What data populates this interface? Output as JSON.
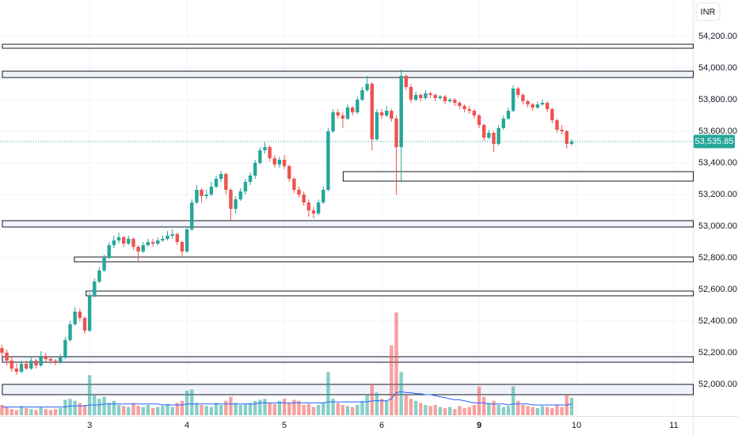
{
  "chart_data": {
    "type": "candlestick",
    "currency": "INR",
    "candles": [
      [
        52230,
        52250,
        52170,
        52200
      ],
      [
        52200,
        52220,
        52120,
        52150
      ],
      [
        52150,
        52170,
        52080,
        52100
      ],
      [
        52100,
        52130,
        52060,
        52080
      ],
      [
        52080,
        52150,
        52070,
        52130
      ],
      [
        52130,
        52150,
        52090,
        52100
      ],
      [
        52100,
        52170,
        52090,
        52150
      ],
      [
        52150,
        52160,
        52100,
        52120
      ],
      [
        52120,
        52210,
        52110,
        52180
      ],
      [
        52180,
        52200,
        52140,
        52160
      ],
      [
        52160,
        52180,
        52130,
        52150
      ],
      [
        52150,
        52160,
        52120,
        52140
      ],
      [
        52140,
        52190,
        52130,
        52170
      ],
      [
        52170,
        52300,
        52160,
        52280
      ],
      [
        52280,
        52400,
        52270,
        52380
      ],
      [
        52380,
        52490,
        52370,
        52460
      ],
      [
        52460,
        52480,
        52400,
        52420
      ],
      [
        52420,
        52430,
        52320,
        52340
      ],
      [
        52340,
        52580,
        52330,
        52560
      ],
      [
        52560,
        52670,
        52550,
        52650
      ],
      [
        52650,
        52740,
        52640,
        52720
      ],
      [
        52720,
        52820,
        52710,
        52800
      ],
      [
        52800,
        52900,
        52790,
        52880
      ],
      [
        52880,
        52940,
        52860,
        52910
      ],
      [
        52910,
        52960,
        52890,
        52930
      ],
      [
        52930,
        52940,
        52870,
        52890
      ],
      [
        52890,
        52940,
        52880,
        52920
      ],
      [
        52920,
        52930,
        52850,
        52870
      ],
      [
        52870,
        52880,
        52780,
        52840
      ],
      [
        52840,
        52900,
        52830,
        52880
      ],
      [
        52880,
        52920,
        52870,
        52900
      ],
      [
        52900,
        52920,
        52870,
        52890
      ],
      [
        52890,
        52930,
        52880,
        52910
      ],
      [
        52910,
        52940,
        52900,
        52920
      ],
      [
        52920,
        52970,
        52910,
        52940
      ],
      [
        52940,
        52980,
        52920,
        52950
      ],
      [
        52950,
        52960,
        52880,
        52900
      ],
      [
        52900,
        52910,
        52810,
        52840
      ],
      [
        52840,
        53000,
        52830,
        52980
      ],
      [
        52980,
        53170,
        52970,
        53150
      ],
      [
        53150,
        53260,
        53140,
        53230
      ],
      [
        53230,
        53240,
        53150,
        53190
      ],
      [
        53190,
        53230,
        53170,
        53200
      ],
      [
        53200,
        53280,
        53190,
        53250
      ],
      [
        53250,
        53320,
        53240,
        53300
      ],
      [
        53300,
        53350,
        53280,
        53330
      ],
      [
        53330,
        53340,
        53200,
        53230
      ],
      [
        53230,
        53240,
        53030,
        53110
      ],
      [
        53110,
        53190,
        53080,
        53170
      ],
      [
        53170,
        53240,
        53160,
        53220
      ],
      [
        53220,
        53300,
        53200,
        53280
      ],
      [
        53280,
        53340,
        53260,
        53320
      ],
      [
        53320,
        53420,
        53300,
        53400
      ],
      [
        53400,
        53500,
        53390,
        53480
      ],
      [
        53480,
        53530,
        53460,
        53500
      ],
      [
        53500,
        53510,
        53410,
        53430
      ],
      [
        53430,
        53450,
        53370,
        53390
      ],
      [
        53390,
        53440,
        53370,
        53420
      ],
      [
        53420,
        53450,
        53360,
        53380
      ],
      [
        53380,
        53390,
        53280,
        53300
      ],
      [
        53300,
        53310,
        53210,
        53230
      ],
      [
        53230,
        53250,
        53180,
        53200
      ],
      [
        53200,
        53220,
        53130,
        53150
      ],
      [
        53150,
        53170,
        53060,
        53100
      ],
      [
        53100,
        53120,
        53050,
        53080
      ],
      [
        53080,
        53170,
        53070,
        53150
      ],
      [
        53150,
        53250,
        53140,
        53230
      ],
      [
        53230,
        53620,
        53220,
        53600
      ],
      [
        53600,
        53740,
        53590,
        53720
      ],
      [
        53720,
        53740,
        53680,
        53700
      ],
      [
        53700,
        53720,
        53620,
        53680
      ],
      [
        53680,
        53770,
        53670,
        53750
      ],
      [
        53750,
        53760,
        53700,
        53720
      ],
      [
        53720,
        53820,
        53710,
        53800
      ],
      [
        53800,
        53880,
        53790,
        53860
      ],
      [
        53860,
        53950,
        53850,
        53900
      ],
      [
        53900,
        53910,
        53480,
        53550
      ],
      [
        53550,
        53740,
        53540,
        53720
      ],
      [
        53720,
        53740,
        53680,
        53700
      ],
      [
        53700,
        53760,
        53690,
        53730
      ],
      [
        53730,
        53740,
        53660,
        53680
      ],
      [
        53680,
        53700,
        53200,
        53500
      ],
      [
        53500,
        53990,
        53280,
        53950
      ],
      [
        53950,
        53960,
        53860,
        53880
      ],
      [
        53880,
        53900,
        53780,
        53800
      ],
      [
        53800,
        53850,
        53790,
        53830
      ],
      [
        53830,
        53840,
        53790,
        53810
      ],
      [
        53810,
        53860,
        53800,
        53840
      ],
      [
        53840,
        53850,
        53810,
        53830
      ],
      [
        53830,
        53840,
        53790,
        53810
      ],
      [
        53810,
        53830,
        53800,
        53820
      ],
      [
        53820,
        53830,
        53770,
        53790
      ],
      [
        53790,
        53810,
        53780,
        53800
      ],
      [
        53800,
        53810,
        53760,
        53780
      ],
      [
        53780,
        53790,
        53740,
        53760
      ],
      [
        53760,
        53770,
        53720,
        53740
      ],
      [
        53740,
        53760,
        53710,
        53730
      ],
      [
        53730,
        53740,
        53680,
        53700
      ],
      [
        53700,
        53710,
        53620,
        53640
      ],
      [
        53640,
        53650,
        53540,
        53560
      ],
      [
        53560,
        53610,
        53550,
        53590
      ],
      [
        53590,
        53600,
        53470,
        53520
      ],
      [
        53520,
        53640,
        53510,
        53620
      ],
      [
        53620,
        53700,
        53610,
        53680
      ],
      [
        53680,
        53750,
        53670,
        53730
      ],
      [
        53730,
        53890,
        53720,
        53870
      ],
      [
        53870,
        53880,
        53810,
        53830
      ],
      [
        53830,
        53840,
        53770,
        53790
      ],
      [
        53790,
        53800,
        53750,
        53770
      ],
      [
        53770,
        53780,
        53730,
        53750
      ],
      [
        53750,
        53790,
        53740,
        53770
      ],
      [
        53770,
        53800,
        53760,
        53780
      ],
      [
        53780,
        53790,
        53720,
        53740
      ],
      [
        53740,
        53750,
        53650,
        53670
      ],
      [
        53670,
        53680,
        53590,
        53610
      ],
      [
        53610,
        53640,
        53580,
        53600
      ],
      [
        53600,
        53610,
        53490,
        53520
      ],
      [
        53520,
        53550,
        53510,
        53535.85
      ]
    ],
    "volume": [
      10,
      8,
      6,
      5,
      9,
      7,
      6,
      5,
      8,
      6,
      5,
      6,
      7,
      15,
      16,
      14,
      12,
      10,
      39,
      20,
      16,
      18,
      12,
      14,
      10,
      9,
      8,
      12,
      9,
      8,
      10,
      7,
      8,
      9,
      11,
      8,
      12,
      14,
      24,
      25,
      12,
      10,
      9,
      8,
      12,
      10,
      14,
      18,
      12,
      10,
      11,
      12,
      14,
      15,
      16,
      12,
      11,
      14,
      16,
      12,
      15,
      14,
      10,
      11,
      8,
      10,
      12,
      42,
      16,
      12,
      10,
      9,
      8,
      10,
      14,
      20,
      30,
      22,
      16,
      14,
      68,
      100,
      42,
      20,
      16,
      14,
      12,
      10,
      9,
      10,
      8,
      7,
      8,
      6,
      9,
      7,
      8,
      10,
      28,
      18,
      12,
      14,
      10,
      8,
      9,
      28,
      14,
      10,
      9,
      8,
      7,
      9,
      8,
      7,
      10,
      8,
      20,
      17
    ],
    "volume_ma": [
      8,
      8,
      8,
      8,
      8,
      8,
      8,
      8,
      8,
      8,
      8,
      8,
      8,
      8,
      9,
      9,
      9,
      9,
      10,
      10,
      10,
      11,
      11,
      11,
      11,
      11,
      11,
      11,
      11,
      11,
      11,
      11,
      11,
      10,
      10,
      10,
      10,
      10,
      11,
      11,
      11,
      11,
      11,
      11,
      11,
      11,
      11,
      11,
      11,
      11,
      11,
      11,
      11,
      12,
      12,
      12,
      12,
      12,
      12,
      12,
      12,
      12,
      12,
      12,
      12,
      12,
      12,
      13,
      13,
      13,
      13,
      13,
      13,
      13,
      13,
      13,
      14,
      14,
      14,
      14,
      16,
      22,
      23,
      22,
      22,
      21,
      21,
      20,
      20,
      19,
      18,
      17,
      16,
      15,
      15,
      14,
      13,
      12,
      12,
      12,
      11,
      11,
      11,
      11,
      10,
      11,
      11,
      11,
      11,
      10,
      10,
      10,
      10,
      10,
      10,
      10,
      10,
      11
    ],
    "up_color": "#26a69a",
    "down_color": "#ef5350",
    "volume_up_color": "rgba(38,166,154,0.55)",
    "volume_down_color": "rgba(239,83,80,0.55)",
    "volume_ma_color": "#2962ff",
    "volume_lim": [
      0,
      100
    ],
    "last_price": {
      "value": 53535.85,
      "label": "53,535.85"
    },
    "zones": [
      {
        "top": 54150,
        "bottom": 54125,
        "start": 0,
        "fill": "#ffffff"
      },
      {
        "top": 53980,
        "bottom": 53940,
        "start": 0,
        "fill": "#f0f3fa"
      },
      {
        "top": 53345,
        "bottom": 53285,
        "start": 70,
        "fill": "#ffffff"
      },
      {
        "top": 53035,
        "bottom": 52995,
        "start": 0,
        "fill": "#f0f3fa"
      },
      {
        "top": 52805,
        "bottom": 52775,
        "start": 14.8,
        "fill": "#ffffff"
      },
      {
        "top": 52590,
        "bottom": 52560,
        "start": 17.2,
        "fill": "#ffffff"
      },
      {
        "top": 52175,
        "bottom": 52140,
        "start": 0,
        "fill": "#f0f3fa"
      },
      {
        "top": 52000,
        "bottom": 51935,
        "start": 0,
        "fill": "#f0f3fa"
      }
    ],
    "xlim": [
      -0.4,
      141.9
    ],
    "xticks": [
      {
        "value": 18,
        "label": "3"
      },
      {
        "value": 38,
        "label": "4"
      },
      {
        "value": 58,
        "label": "5"
      },
      {
        "value": 78,
        "label": "6"
      },
      {
        "value": 98,
        "label": "9",
        "bold": true
      },
      {
        "value": 118,
        "label": "10"
      },
      {
        "value": 138,
        "label": "11"
      }
    ],
    "ylim": [
      51805,
      54430
    ],
    "yticks": [
      {
        "value": 52000,
        "label": "52,000.00"
      },
      {
        "value": 52200,
        "label": "52,200.00"
      },
      {
        "value": 52400,
        "label": "52,400.00"
      },
      {
        "value": 52600,
        "label": "52,600.00"
      },
      {
        "value": 52800,
        "label": "52,800.00"
      },
      {
        "value": 53000,
        "label": "53,000.00"
      },
      {
        "value": 53200,
        "label": "53,200.00"
      },
      {
        "value": 53400,
        "label": "53,400.00"
      },
      {
        "value": 53600,
        "label": "53,600.00"
      },
      {
        "value": 53800,
        "label": "53,800.00"
      },
      {
        "value": 54000,
        "label": "54,000.00"
      },
      {
        "value": 54200,
        "label": "54,200.00"
      }
    ],
    "grid": true
  }
}
